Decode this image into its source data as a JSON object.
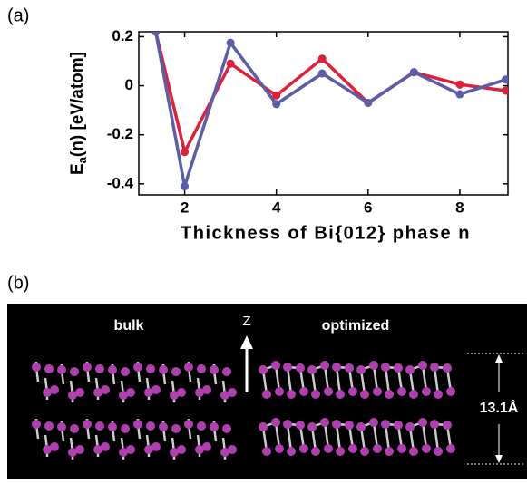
{
  "panel_labels": [
    "(a)",
    "(b)"
  ],
  "chart_data": {
    "type": "line",
    "y_label": {
      "main": "E",
      "sub": "a",
      "rest": "(n)  [eV/atom]"
    },
    "x_label": "Thickness of Bi{012} phase   n",
    "x": [
      1.37,
      2,
      3,
      4,
      5,
      6,
      7,
      8,
      9
    ],
    "series": [
      {
        "color": "#e0203a",
        "values": [
          0.22,
          -0.27,
          0.09,
          -0.04,
          0.11,
          -0.07,
          0.055,
          0.005,
          -0.02
        ]
      },
      {
        "color": "#5b5ea6",
        "values": [
          0.22,
          -0.41,
          0.175,
          -0.075,
          0.05,
          -0.07,
          0.055,
          -0.035,
          0.025
        ]
      }
    ],
    "xlim": [
      1,
      9.05
    ],
    "ylim": [
      -0.445,
      0.22
    ],
    "xticks": [
      2,
      4,
      6,
      8
    ],
    "yticks": [
      -0.4,
      -0.2,
      0,
      0.2
    ]
  },
  "diagram": {
    "bulk": "bulk",
    "axis": "Z",
    "optimized": "optimized",
    "height": "13.1Å"
  }
}
